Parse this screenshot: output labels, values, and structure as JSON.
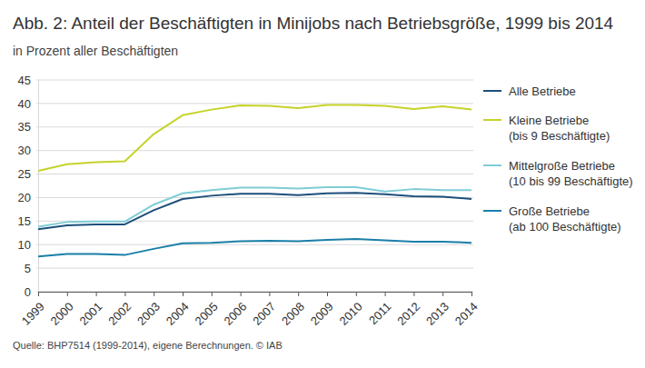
{
  "chart_data": {
    "type": "line",
    "title": "Abb. 2: Anteil der Beschäftigten in Minijobs nach Betriebsgröße, 1999 bis 2014",
    "subtitle": "in Prozent aller Beschäftigten",
    "source": "Quelle: BHP7514 (1999-2014), eigene Berechnungen. © IAB",
    "x": [
      1999,
      2000,
      2001,
      2002,
      2003,
      2004,
      2005,
      2006,
      2007,
      2008,
      2009,
      2010,
      2011,
      2012,
      2013,
      2014
    ],
    "xlim": [
      1999,
      2014
    ],
    "xticks": [
      1999,
      2000,
      2001,
      2002,
      2003,
      2004,
      2005,
      2006,
      2007,
      2008,
      2009,
      2010,
      2011,
      2012,
      2013,
      2014
    ],
    "ylim": [
      0,
      45
    ],
    "yticks": [
      0,
      5,
      10,
      15,
      20,
      25,
      30,
      35,
      40,
      45
    ],
    "grid": true,
    "legend": "right",
    "series": [
      {
        "name": "Alle Betriebe",
        "color": "#1d4f7c",
        "values": [
          13.3,
          14.1,
          14.3,
          14.3,
          17.3,
          19.7,
          20.4,
          20.8,
          20.8,
          20.5,
          20.9,
          21.0,
          20.7,
          20.3,
          20.2,
          19.7
        ]
      },
      {
        "name": "Kleine Betriebe (bis 9 Beschäftigte)",
        "color": "#c5d32a",
        "values": [
          25.7,
          27.1,
          27.5,
          27.7,
          33.5,
          37.5,
          38.7,
          39.6,
          39.5,
          39.0,
          39.7,
          39.7,
          39.5,
          38.8,
          39.4,
          38.7
        ]
      },
      {
        "name": "Mittelgroße Betriebe (10 bis 99 Beschäftigte)",
        "color": "#7fcdd6",
        "values": [
          13.8,
          14.8,
          14.9,
          14.9,
          18.5,
          20.9,
          21.6,
          22.1,
          22.1,
          21.9,
          22.2,
          22.2,
          21.3,
          21.8,
          21.6,
          21.6
        ]
      },
      {
        "name": "Große Betriebe (ab 100 Beschäftigte)",
        "color": "#1a7fa8",
        "values": [
          7.5,
          8.0,
          8.0,
          7.8,
          9.1,
          10.3,
          10.4,
          10.7,
          10.8,
          10.7,
          11.0,
          11.2,
          10.9,
          10.6,
          10.6,
          10.4
        ]
      }
    ]
  }
}
